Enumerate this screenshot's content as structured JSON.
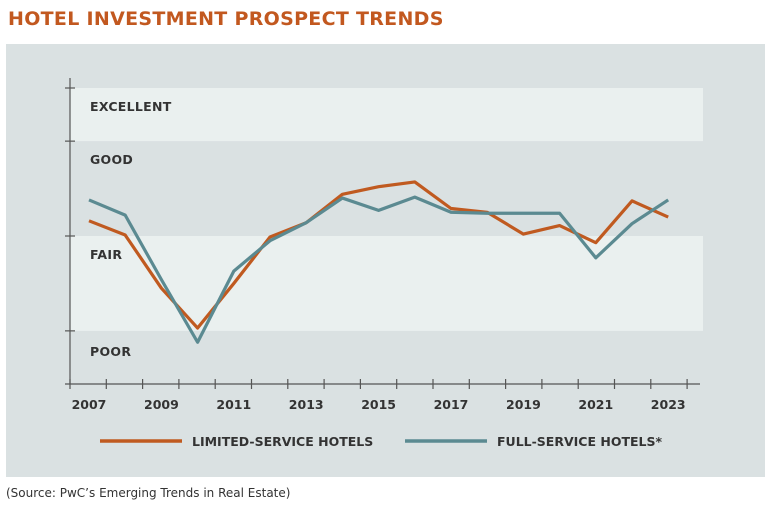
{
  "chart_data": {
    "type": "line",
    "title": "HOTEL INVESTMENT PROSPECT TRENDS",
    "x": [
      2007,
      2008,
      2009,
      2010,
      2011,
      2012,
      2013,
      2014,
      2015,
      2016,
      2017,
      2018,
      2019,
      2020,
      2021,
      2022,
      2023
    ],
    "x_tick_labels": [
      "2007",
      "2009",
      "2011",
      "2013",
      "2015",
      "2017",
      "2019",
      "2021",
      "2023"
    ],
    "y_bands": [
      "POOR",
      "FAIR",
      "GOOD",
      "EXCELLENT"
    ],
    "ylim": [
      1.44,
      4.56
    ],
    "grid": false,
    "legend_placement": "bottom",
    "series": [
      {
        "name": "LIMITED-SERVICE HOTELS",
        "color": "#c05a20",
        "values": [
          3.16,
          3.01,
          2.45,
          2.03,
          2.5,
          2.99,
          3.14,
          3.44,
          3.52,
          3.57,
          3.29,
          3.25,
          3.02,
          3.11,
          2.93,
          3.37,
          3.2
        ]
      },
      {
        "name": "FULL-SERVICE HOTELS*",
        "color": "#5b8a91",
        "values": [
          3.38,
          3.22,
          2.54,
          1.88,
          2.63,
          2.95,
          3.14,
          3.4,
          3.27,
          3.41,
          3.25,
          3.24,
          3.24,
          3.24,
          2.77,
          3.13,
          3.38
        ]
      }
    ]
  },
  "source": "(Source: PwC’s Emerging Trends in Real Estate)"
}
